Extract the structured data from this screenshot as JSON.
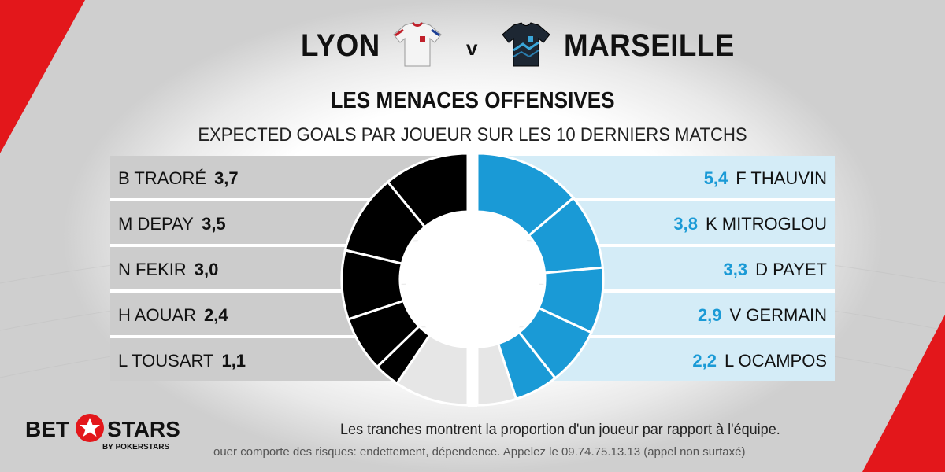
{
  "header": {
    "home_team": "LYON",
    "versus": "v",
    "away_team": "MARSEILLE"
  },
  "title": "LES MENACES OFFENSIVES",
  "subtitle": "EXPECTED GOALS PAR JOUEUR SUR LES 10 DERNIERS MATCHS",
  "colors": {
    "home_series": "#000000",
    "away_series": "#1a9ad6",
    "home_panel": "#cccccc",
    "away_panel": "#d4ecf7",
    "remainder": "#e6e6e6",
    "accent_red": "#e3171b"
  },
  "chart_data": {
    "type": "donut",
    "series": [
      {
        "name": "LYON",
        "players": [
          "B TRAORÉ",
          "M DEPAY",
          "N FEKIR",
          "H AOUAR",
          "L TOUSART"
        ],
        "values": [
          3.7,
          3.5,
          3.0,
          2.4,
          1.1
        ],
        "value_labels": [
          "3,7",
          "3,5",
          "3,0",
          "2,4",
          "1,1"
        ],
        "remainder_share": 0.19
      },
      {
        "name": "MARSEILLE",
        "players": [
          "F THAUVIN",
          "K MITROGLOU",
          "D PAYET",
          "V GERMAIN",
          "L OCAMPOS"
        ],
        "values": [
          5.4,
          3.8,
          3.3,
          2.9,
          2.2
        ],
        "value_labels": [
          "5,4",
          "3,8",
          "3,3",
          "2,9",
          "2,2"
        ],
        "remainder_share": 0.1
      }
    ]
  },
  "footer": {
    "logo_bet": "BET",
    "logo_stars": "STARS",
    "logo_sub": "BY POKERSTARS",
    "note": "Les tranches montrent la proportion d'un joueur par rapport à l'équipe.",
    "disclaimer": "ouer comporte des risques: endettement, dépendence. Appelez le 09.74.75.13.13 (appel non surtaxé)"
  }
}
